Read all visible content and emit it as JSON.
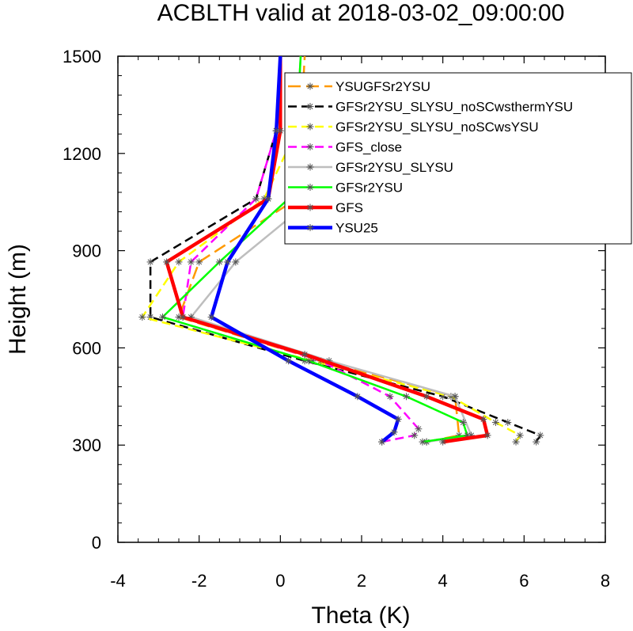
{
  "chart_data": {
    "type": "line",
    "title": "ACBLTH valid at 2018-03-02_09:00:00",
    "xlabel": "Theta (K)",
    "ylabel": "Height (m)",
    "xlim": [
      -4,
      8
    ],
    "ylim": [
      0,
      1500
    ],
    "xticks": [
      -4,
      -2,
      0,
      2,
      4,
      6,
      8
    ],
    "yticks": [
      0,
      300,
      600,
      900,
      1200,
      1500
    ],
    "xtick_labels": [
      "-4",
      "-2",
      "0",
      "2",
      "4",
      "6",
      "8"
    ],
    "ytick_labels": [
      "0",
      "300",
      "600",
      "900",
      "1200",
      "1500"
    ],
    "grid": false,
    "legend_position": "top-right",
    "series": [
      {
        "name": "YSUGFSr2YSU",
        "color": "#ff9900",
        "dash": "long-dash",
        "width": 2.5,
        "points": [
          [
            3.6,
            310
          ],
          [
            4.4,
            330
          ],
          [
            4.3,
            450
          ],
          [
            1.0,
            560
          ],
          [
            -2.5,
            695
          ],
          [
            -2.0,
            865
          ],
          [
            0.4,
            1060
          ],
          [
            0.5,
            1270
          ],
          [
            0.6,
            1500
          ]
        ]
      },
      {
        "name": "GFSr2YSU_SLYSU_noSCwsthermYSU",
        "color": "#000000",
        "dash": "dash",
        "width": 2.5,
        "points": [
          [
            6.3,
            310
          ],
          [
            6.4,
            330
          ],
          [
            5.6,
            370
          ],
          [
            4.0,
            450
          ],
          [
            0.6,
            560
          ],
          [
            -3.2,
            695
          ],
          [
            -3.2,
            865
          ],
          [
            -0.6,
            1060
          ],
          [
            -0.1,
            1270
          ],
          [
            0.0,
            1500
          ]
        ]
      },
      {
        "name": "GFSr2YSU_SLYSU_noSCwsYSU",
        "color": "#ffff00",
        "dash": "dash",
        "width": 2.5,
        "points": [
          [
            5.8,
            310
          ],
          [
            5.9,
            330
          ],
          [
            5.3,
            370
          ],
          [
            4.2,
            450
          ],
          [
            0.8,
            560
          ],
          [
            -3.4,
            695
          ],
          [
            -2.5,
            865
          ],
          [
            -0.4,
            1060
          ],
          [
            0.4,
            1270
          ],
          [
            0.5,
            1500
          ]
        ]
      },
      {
        "name": "GFS_close",
        "color": "#ff00ff",
        "dash": "dash",
        "width": 2.5,
        "points": [
          [
            2.5,
            310
          ],
          [
            3.3,
            330
          ],
          [
            3.4,
            350
          ],
          [
            2.7,
            450
          ],
          [
            1.0,
            560
          ],
          [
            -2.4,
            695
          ],
          [
            -2.2,
            865
          ],
          [
            -0.6,
            1060
          ],
          [
            -0.1,
            1270
          ],
          [
            0.0,
            1500
          ]
        ]
      },
      {
        "name": "GFSr2YSU_SLYSU",
        "color": "#bebebe",
        "dash": "solid",
        "width": 2.5,
        "points": [
          [
            3.6,
            310
          ],
          [
            4.7,
            330
          ],
          [
            4.3,
            450
          ],
          [
            1.2,
            560
          ],
          [
            -2.2,
            695
          ],
          [
            -1.1,
            865
          ],
          [
            0.8,
            1060
          ],
          [
            0.4,
            1270
          ],
          [
            0.5,
            1500
          ]
        ]
      },
      {
        "name": "GFSr2YSU",
        "color": "#00ff00",
        "dash": "solid",
        "width": 2.5,
        "points": [
          [
            3.5,
            310
          ],
          [
            4.6,
            330
          ],
          [
            4.5,
            370
          ],
          [
            3.1,
            450
          ],
          [
            0.7,
            560
          ],
          [
            -2.9,
            695
          ],
          [
            -1.5,
            865
          ],
          [
            0.2,
            1060
          ],
          [
            0.4,
            1270
          ],
          [
            0.5,
            1500
          ]
        ]
      },
      {
        "name": "GFS",
        "color": "#ff0000",
        "dash": "solid",
        "width": 4.5,
        "points": [
          [
            4.0,
            310
          ],
          [
            5.1,
            330
          ],
          [
            5.0,
            380
          ],
          [
            3.6,
            450
          ],
          [
            0.6,
            580
          ],
          [
            -2.4,
            695
          ],
          [
            -2.8,
            865
          ],
          [
            -0.3,
            1060
          ],
          [
            0.0,
            1270
          ],
          [
            0.0,
            1500
          ]
        ]
      },
      {
        "name": "YSU25",
        "color": "#0000ff",
        "dash": "solid",
        "width": 4.5,
        "points": [
          [
            2.5,
            310
          ],
          [
            2.8,
            340
          ],
          [
            2.9,
            380
          ],
          [
            1.9,
            450
          ],
          [
            0.2,
            560
          ],
          [
            -1.7,
            695
          ],
          [
            -1.3,
            865
          ],
          [
            -0.3,
            1060
          ],
          [
            -0.1,
            1270
          ],
          [
            0.0,
            1500
          ]
        ]
      }
    ]
  }
}
